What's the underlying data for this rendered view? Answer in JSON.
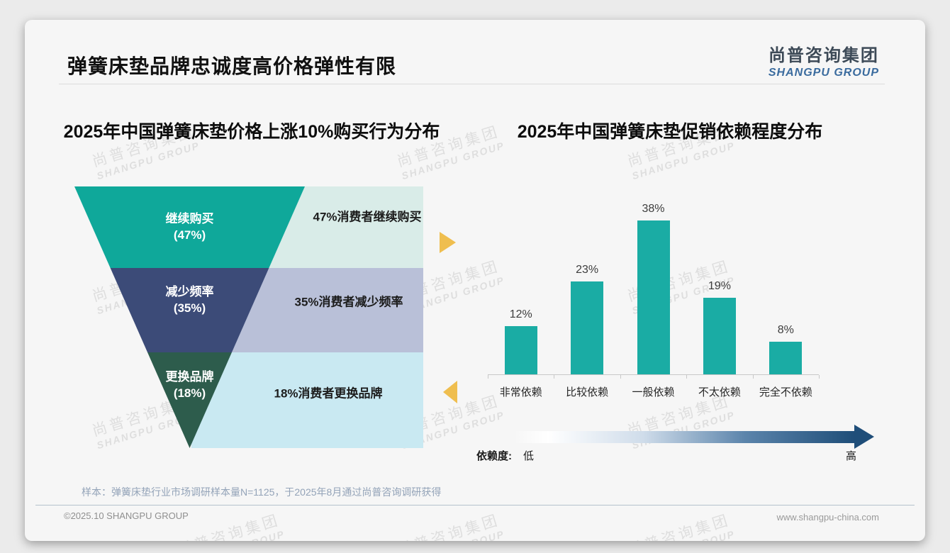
{
  "header": {
    "title": "弹簧床垫品牌忠诚度高价格弹性有限",
    "logo_cn": "尚普咨询集团",
    "logo_en": "SHANGPU GROUP"
  },
  "watermark": {
    "cn": "尚普咨询集团",
    "en": "SHANGPU GROUP"
  },
  "footer": {
    "note": "样本：弹簧床垫行业市场调研样本量N=1125，于2025年8月通过尚普咨询调研获得",
    "copyright": "©2025.10 SHANGPU GROUP",
    "website": "www.shangpu-china.com"
  },
  "chart_data": [
    {
      "type": "funnel",
      "title": "2025年中国弹簧床垫价格上涨10%购买行为分布",
      "segments": [
        {
          "label": "继续购买",
          "pct": "(47%)",
          "value": 47,
          "annotation": "47%消费者继续购买",
          "color": "#0fa89a",
          "panel_color": "#d9ece8"
        },
        {
          "label": "减少频率",
          "pct": "(35%)",
          "value": 35,
          "annotation": "35%消费者减少频率",
          "color": "#3c4b78",
          "panel_color": "#b9c0d8"
        },
        {
          "label": "更换品牌",
          "pct": "(18%)",
          "value": 18,
          "annotation": "18%消费者更换品牌",
          "color": "#2d5c4c",
          "panel_color": "#c9e9f2"
        }
      ],
      "accent_arrow_color": "#efbe4f"
    },
    {
      "type": "bar",
      "title": "2025年中国弹簧床垫促销依赖程度分布",
      "categories": [
        "非常依赖",
        "比较依赖",
        "一般依赖",
        "不太依赖",
        "完全不依赖"
      ],
      "values": [
        12,
        23,
        38,
        19,
        8
      ],
      "value_labels": [
        "12%",
        "23%",
        "38%",
        "19%",
        "8%"
      ],
      "bar_color": "#1aaca4",
      "ylim": [
        0,
        40
      ],
      "grid": false,
      "legend": "none",
      "dependency_scale": {
        "label": "依赖度:",
        "low": "低",
        "high": "高",
        "gradient": [
          "#ffffff",
          "#1f4e79"
        ]
      }
    }
  ]
}
